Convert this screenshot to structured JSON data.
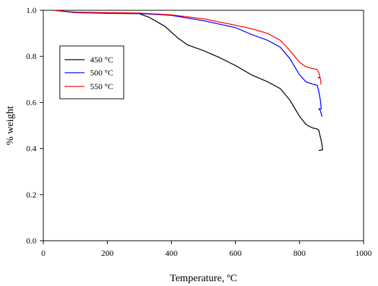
{
  "chart_data": {
    "type": "line",
    "xlabel": "Temperature, ºC",
    "ylabel": "% weight",
    "xlim": [
      0,
      1000
    ],
    "ylim": [
      0.0,
      1.0
    ],
    "x_ticks": [
      "0",
      "200",
      "400",
      "600",
      "800",
      "1000"
    ],
    "y_ticks": [
      "0.0",
      "0.2",
      "0.4",
      "0.6",
      "0.8",
      "1.0"
    ],
    "grid": false,
    "legend_position": "left-upper-middle",
    "series": [
      {
        "name": "450 °C",
        "color": "#000000",
        "points": [
          [
            30,
            1.0
          ],
          [
            100,
            0.99
          ],
          [
            200,
            0.987
          ],
          [
            300,
            0.985
          ],
          [
            330,
            0.97
          ],
          [
            380,
            0.93
          ],
          [
            420,
            0.88
          ],
          [
            450,
            0.85
          ],
          [
            500,
            0.825
          ],
          [
            550,
            0.795
          ],
          [
            600,
            0.76
          ],
          [
            650,
            0.72
          ],
          [
            700,
            0.69
          ],
          [
            740,
            0.66
          ],
          [
            770,
            0.61
          ],
          [
            800,
            0.54
          ],
          [
            820,
            0.505
          ],
          [
            840,
            0.49
          ],
          [
            855,
            0.485
          ],
          [
            860,
            0.48
          ],
          [
            865,
            0.45
          ],
          [
            870,
            0.42
          ],
          [
            872,
            0.395
          ],
          [
            865,
            0.392
          ],
          [
            860,
            0.392
          ]
        ]
      },
      {
        "name": "500 °C",
        "color": "#0000ff",
        "points": [
          [
            30,
            1.0
          ],
          [
            100,
            0.99
          ],
          [
            200,
            0.988
          ],
          [
            300,
            0.986
          ],
          [
            400,
            0.978
          ],
          [
            500,
            0.955
          ],
          [
            600,
            0.925
          ],
          [
            650,
            0.895
          ],
          [
            700,
            0.87
          ],
          [
            740,
            0.84
          ],
          [
            770,
            0.79
          ],
          [
            800,
            0.72
          ],
          [
            820,
            0.69
          ],
          [
            840,
            0.68
          ],
          [
            855,
            0.675
          ],
          [
            860,
            0.65
          ],
          [
            865,
            0.61
          ],
          [
            868,
            0.572
          ],
          [
            860,
            0.572
          ],
          [
            865,
            0.565
          ],
          [
            868,
            0.55
          ],
          [
            870,
            0.538
          ]
        ]
      },
      {
        "name": "550 °C",
        "color": "#ff0000",
        "points": [
          [
            30,
            1.0
          ],
          [
            100,
            0.992
          ],
          [
            200,
            0.99
          ],
          [
            300,
            0.988
          ],
          [
            400,
            0.98
          ],
          [
            500,
            0.963
          ],
          [
            600,
            0.935
          ],
          [
            650,
            0.92
          ],
          [
            700,
            0.9
          ],
          [
            740,
            0.87
          ],
          [
            770,
            0.825
          ],
          [
            800,
            0.775
          ],
          [
            820,
            0.755
          ],
          [
            840,
            0.748
          ],
          [
            855,
            0.743
          ],
          [
            860,
            0.73
          ],
          [
            864,
            0.71
          ],
          [
            858,
            0.708
          ],
          [
            865,
            0.705
          ],
          [
            866,
            0.695
          ],
          [
            867,
            0.678
          ]
        ]
      }
    ]
  }
}
